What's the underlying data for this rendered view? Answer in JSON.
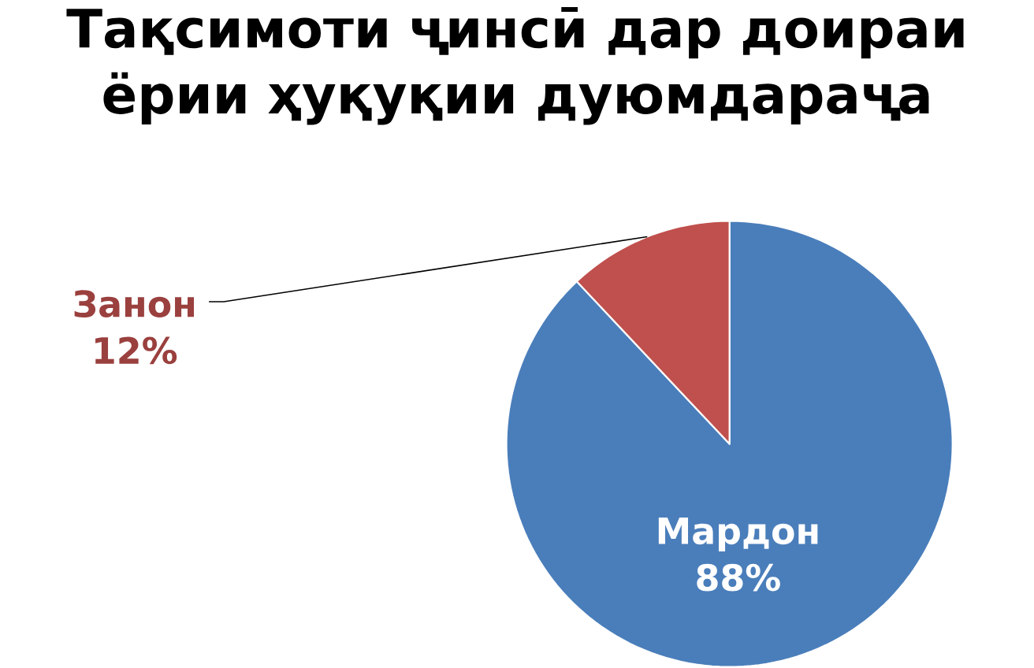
{
  "chart_data": {
    "type": "pie",
    "title": "Тақсимоти ҷинсӣ дар доираи ёрии ҳуқуқии дуюмдараҷа",
    "categories": [
      "Мардон",
      "Занон"
    ],
    "values": [
      88,
      12
    ],
    "value_labels": [
      "88%",
      "12%"
    ],
    "colors": [
      "#4a7ebb",
      "#c0504d"
    ]
  }
}
